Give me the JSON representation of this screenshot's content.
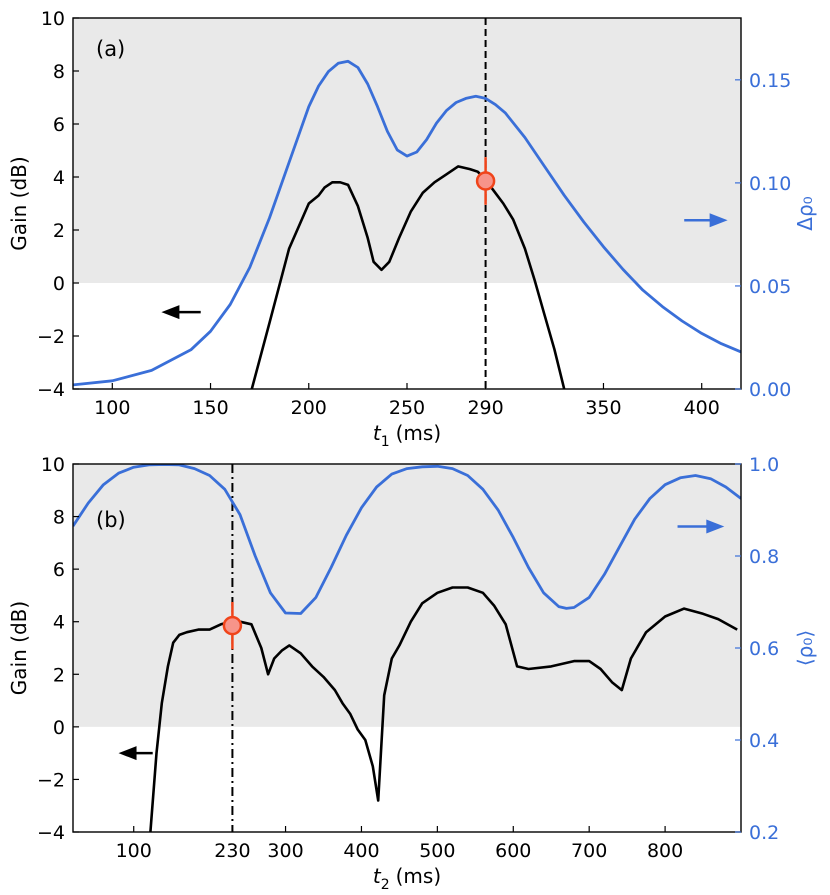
{
  "colors": {
    "shade": "#e9e9e9",
    "gain_line": "#000000",
    "rho_line": "#3a6fd8",
    "marker_fill": "#f7948a",
    "marker_edge": "#f0441a",
    "right_axis": "#3a6fd8"
  },
  "chart_data": [
    {
      "type": "line",
      "panel_label": "(a)",
      "xlabel_var": "t",
      "xlabel_sub": "1",
      "xlabel_unit": "(ms)",
      "ylabel": "Gain (dB)",
      "ylabel_right": "Δρ₀",
      "xlim": [
        80,
        420
      ],
      "ylim": [
        -4,
        10
      ],
      "ylim_right": [
        0,
        0.18
      ],
      "xticks": [
        100,
        150,
        200,
        250,
        290,
        350,
        400
      ],
      "xtick_labels": [
        "100",
        "150",
        "200",
        "250",
        "290",
        "350",
        "400"
      ],
      "yticks": [
        -4,
        -2,
        0,
        2,
        4,
        6,
        8,
        10
      ],
      "ytick_labels": [
        "−4",
        "−2",
        "0",
        "2",
        "4",
        "6",
        "8",
        "10"
      ],
      "yticks_right": [
        0.0,
        0.05,
        0.1,
        0.15
      ],
      "ytick_labels_right": [
        "0.00",
        "0.05",
        "0.10",
        "0.15"
      ],
      "shade_above": 0,
      "vline": {
        "x": 290,
        "style": "dashed"
      },
      "marker": {
        "x": 290,
        "y": 3.85,
        "err": 0.9
      },
      "left_arrow": {
        "from": [
          145,
          -1.1
        ],
        "to": [
          125,
          -1.1
        ]
      },
      "right_arrow": {
        "from": [
          0.915,
          0.455
        ],
        "to": [
          0.98,
          0.455
        ]
      },
      "series": [
        {
          "name": "Gain",
          "axis": "left",
          "x": [
            171,
            180,
            190,
            200,
            205,
            208,
            212,
            216,
            220,
            225,
            230,
            233,
            237,
            241,
            246,
            252,
            258,
            264,
            270,
            276,
            282,
            286,
            290,
            294,
            299,
            304,
            310,
            315,
            320,
            325,
            330
          ],
          "y": [
            -4,
            -1.5,
            1.3,
            3.0,
            3.3,
            3.6,
            3.8,
            3.8,
            3.7,
            2.9,
            1.7,
            0.8,
            0.5,
            0.8,
            1.7,
            2.7,
            3.4,
            3.8,
            4.1,
            4.4,
            4.3,
            4.2,
            3.9,
            3.5,
            3.0,
            2.4,
            1.3,
            0.1,
            -1.2,
            -2.5,
            -4
          ]
        },
        {
          "name": "Δρ₀",
          "axis": "right",
          "x": [
            80,
            100,
            120,
            140,
            150,
            160,
            170,
            180,
            190,
            200,
            205,
            210,
            215,
            220,
            225,
            230,
            235,
            240,
            245,
            250,
            255,
            260,
            265,
            270,
            275,
            280,
            285,
            290,
            295,
            300,
            310,
            320,
            330,
            340,
            350,
            360,
            370,
            380,
            390,
            400,
            410,
            420
          ],
          "y": [
            0.002,
            0.004,
            0.009,
            0.019,
            0.028,
            0.041,
            0.059,
            0.083,
            0.11,
            0.137,
            0.147,
            0.154,
            0.158,
            0.159,
            0.156,
            0.148,
            0.137,
            0.125,
            0.116,
            0.113,
            0.115,
            0.121,
            0.129,
            0.135,
            0.139,
            0.141,
            0.142,
            0.141,
            0.138,
            0.134,
            0.122,
            0.108,
            0.094,
            0.081,
            0.069,
            0.058,
            0.048,
            0.04,
            0.033,
            0.027,
            0.022,
            0.018
          ]
        }
      ]
    },
    {
      "type": "line",
      "panel_label": "(b)",
      "xlabel_var": "t",
      "xlabel_sub": "2",
      "xlabel_unit": "(ms)",
      "ylabel": "Gain (dB)",
      "ylabel_right": "⟨ρ₀⟩",
      "xlim": [
        20,
        900
      ],
      "ylim": [
        -4,
        10
      ],
      "ylim_right": [
        0.2,
        1.0
      ],
      "xticks": [
        100,
        230,
        300,
        400,
        500,
        600,
        700,
        800
      ],
      "xtick_labels": [
        "100",
        "230",
        "300",
        "400",
        "500",
        "600",
        "700",
        "800"
      ],
      "yticks": [
        -4,
        -2,
        0,
        2,
        4,
        6,
        8,
        10
      ],
      "ytick_labels": [
        "−4",
        "−2",
        "0",
        "2",
        "4",
        "6",
        "8",
        "10"
      ],
      "yticks_right": [
        0.2,
        0.4,
        0.6,
        0.8,
        1.0
      ],
      "ytick_labels_right": [
        "0.2",
        "0.4",
        "0.6",
        "0.8",
        "1.0"
      ],
      "shade_above": 0,
      "vline": {
        "x": 230,
        "style": "dashdot"
      },
      "marker": {
        "x": 230,
        "y": 3.85,
        "err": 0.9
      },
      "left_arrow": {
        "from": [
          125,
          -1.0
        ],
        "to": [
          80,
          -1.0
        ]
      },
      "right_arrow": {
        "from": [
          0.905,
          0.83
        ],
        "to": [
          0.975,
          0.83
        ]
      },
      "series": [
        {
          "name": "Gain",
          "axis": "left",
          "x": [
            122,
            130,
            137,
            145,
            152,
            160,
            170,
            185,
            200,
            215,
            228,
            240,
            255,
            268,
            277,
            285,
            295,
            305,
            320,
            335,
            350,
            365,
            375,
            385,
            395,
            405,
            415,
            422,
            430,
            440,
            450,
            465,
            480,
            500,
            520,
            540,
            560,
            575,
            590,
            605,
            620,
            650,
            680,
            700,
            715,
            730,
            743,
            755,
            775,
            800,
            825,
            850,
            870,
            895
          ],
          "y": [
            -4,
            -1.0,
            0.9,
            2.3,
            3.2,
            3.5,
            3.6,
            3.7,
            3.7,
            3.9,
            4.0,
            4.0,
            3.9,
            3.0,
            2.0,
            2.6,
            2.9,
            3.1,
            2.8,
            2.3,
            1.9,
            1.4,
            0.9,
            0.5,
            -0.1,
            -0.5,
            -1.5,
            -2.8,
            1.2,
            2.6,
            3.1,
            4.0,
            4.7,
            5.1,
            5.3,
            5.3,
            5.1,
            4.6,
            3.9,
            2.3,
            2.2,
            2.3,
            2.5,
            2.5,
            2.2,
            1.7,
            1.4,
            2.6,
            3.6,
            4.2,
            4.5,
            4.3,
            4.1,
            3.7
          ]
        },
        {
          "name": "⟨ρ₀⟩",
          "axis": "right",
          "x": [
            20,
            40,
            60,
            80,
            100,
            120,
            140,
            160,
            180,
            200,
            220,
            240,
            260,
            280,
            300,
            320,
            340,
            360,
            380,
            400,
            420,
            440,
            460,
            480,
            500,
            520,
            540,
            560,
            580,
            600,
            620,
            640,
            660,
            670,
            680,
            700,
            720,
            740,
            760,
            780,
            800,
            820,
            840,
            860,
            880,
            900
          ],
          "y": [
            0.865,
            0.915,
            0.955,
            0.98,
            0.993,
            0.998,
            0.999,
            0.998,
            0.99,
            0.975,
            0.945,
            0.89,
            0.8,
            0.72,
            0.676,
            0.675,
            0.71,
            0.775,
            0.845,
            0.905,
            0.95,
            0.978,
            0.99,
            0.994,
            0.995,
            0.99,
            0.975,
            0.945,
            0.9,
            0.84,
            0.775,
            0.72,
            0.69,
            0.686,
            0.688,
            0.71,
            0.76,
            0.82,
            0.88,
            0.925,
            0.955,
            0.97,
            0.975,
            0.968,
            0.95,
            0.925
          ]
        }
      ]
    }
  ]
}
